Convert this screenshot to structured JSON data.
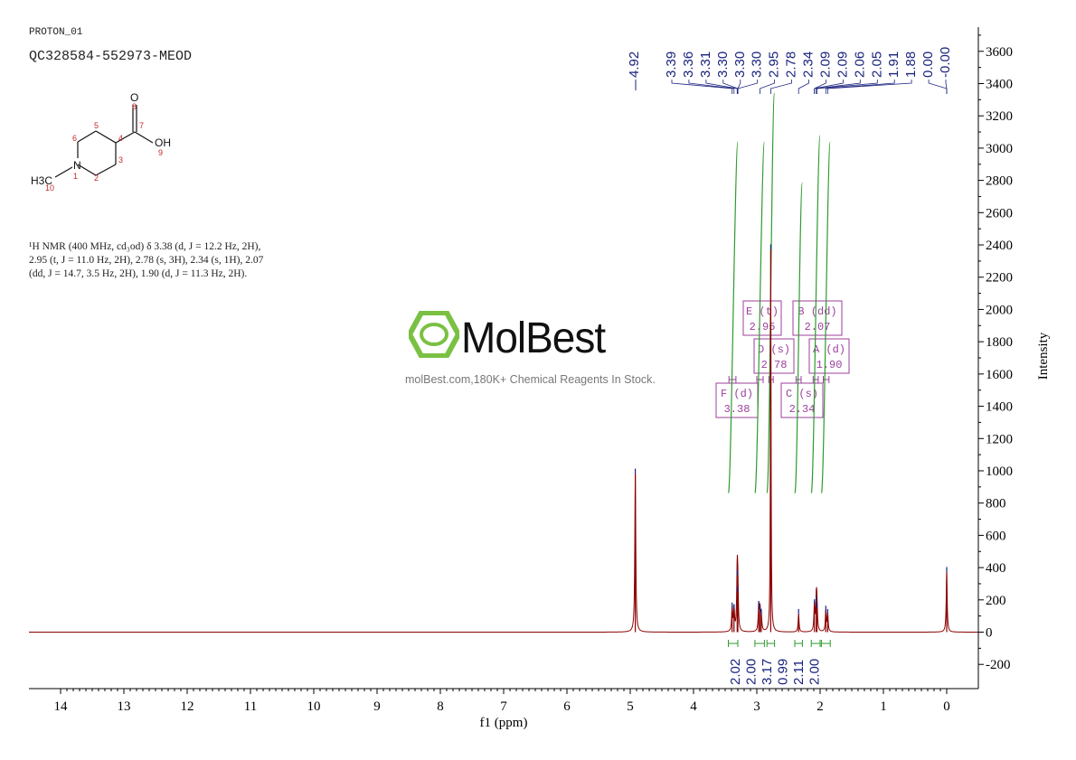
{
  "header": {
    "experiment": "PROTON_01",
    "sample": "QC328584-552973-MEOD"
  },
  "structure": {
    "atoms": {
      "O_top": "O",
      "OH": "OH",
      "N": "N",
      "methyl": "H3C"
    },
    "atom_numbers": [
      "1",
      "2",
      "3",
      "4",
      "5",
      "6",
      "7",
      "8",
      "9",
      "10"
    ]
  },
  "nmr_text": {
    "line1": "¹H NMR (400 MHz, cd₃od) δ 3.38 (d, J = 12.2 Hz, 2H),",
    "line2": "2.95 (t, J = 11.0 Hz, 2H), 2.78 (s, 3H), 2.34 (s, 1H), 2.07",
    "line3": "(dd, J = 14.7, 3.5 Hz, 2H), 1.90 (d, J = 11.3 Hz, 2H)."
  },
  "watermark": {
    "brand": "MolBest",
    "tagline": "molBest.com,180K+ Chemical Reagents In Stock."
  },
  "colors": {
    "spectrum": "#8b0000",
    "peak_labels": "#1a237e",
    "integrals": "#2e9a2e",
    "multiplets": "#9c3f9c",
    "logo": "#7ac143",
    "axis": "#000000"
  },
  "chart_data": {
    "type": "line",
    "xlabel": "f1 (ppm)",
    "ylabel": "Intensity",
    "xlim": [
      14.5,
      -0.5
    ],
    "ylim": [
      -350,
      3750
    ],
    "x_reversed": true,
    "x_ticks": [
      14,
      13,
      12,
      11,
      10,
      9,
      8,
      7,
      6,
      5,
      4,
      3,
      2,
      1,
      0
    ],
    "y_ticks": [
      -200,
      0,
      200,
      400,
      600,
      800,
      1000,
      1200,
      1400,
      1600,
      1800,
      2000,
      2200,
      2400,
      2600,
      2800,
      3000,
      3200,
      3400,
      3600
    ],
    "peaks": [
      {
        "ppm": 4.92,
        "height": 980
      },
      {
        "ppm": 3.39,
        "height": 150
      },
      {
        "ppm": 3.36,
        "height": 140
      },
      {
        "ppm": 3.31,
        "height": 350
      },
      {
        "ppm": 3.3,
        "height": 250
      },
      {
        "ppm": 2.97,
        "height": 160
      },
      {
        "ppm": 2.95,
        "height": 130
      },
      {
        "ppm": 2.93,
        "height": 110
      },
      {
        "ppm": 2.78,
        "height": 2370
      },
      {
        "ppm": 2.34,
        "height": 110
      },
      {
        "ppm": 2.09,
        "height": 170
      },
      {
        "ppm": 2.06,
        "height": 190
      },
      {
        "ppm": 2.05,
        "height": 150
      },
      {
        "ppm": 1.91,
        "height": 130
      },
      {
        "ppm": 1.88,
        "height": 110
      },
      {
        "ppm": 0.0,
        "height": 370
      }
    ],
    "peak_labels": [
      "4.92",
      "3.39",
      "3.36",
      "3.31",
      "3.30",
      "3.30",
      "3.30",
      "2.95",
      "2.78",
      "2.34",
      "2.09",
      "2.09",
      "2.06",
      "2.05",
      "1.91",
      "1.88",
      "0.00",
      "-0.00"
    ],
    "integrals": [
      {
        "from": 3.45,
        "to": 3.3,
        "value": "2.02"
      },
      {
        "from": 3.03,
        "to": 2.88,
        "value": "2.00"
      },
      {
        "from": 2.84,
        "to": 2.72,
        "value": "3.17"
      },
      {
        "from": 2.4,
        "to": 2.28,
        "value": "0.99"
      },
      {
        "from": 2.14,
        "to": 2.0,
        "value": "2.11"
      },
      {
        "from": 1.98,
        "to": 1.84,
        "value": "2.00"
      }
    ],
    "multiplets": [
      {
        "label": "E (t)",
        "shift": "2.95"
      },
      {
        "label": "B (dd)",
        "shift": "2.07"
      },
      {
        "label": "D (s)",
        "shift": "2.78"
      },
      {
        "label": "A (d)",
        "shift": "1.90"
      },
      {
        "label": "F (d)",
        "shift": "3.38"
      },
      {
        "label": "C (s)",
        "shift": "2.34"
      }
    ]
  }
}
